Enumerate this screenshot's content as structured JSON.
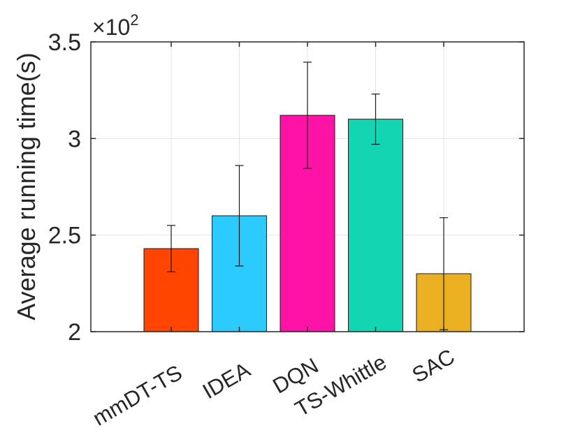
{
  "chart_data": {
    "type": "bar",
    "title": "",
    "xlabel": "",
    "ylabel": "Average running time(s)",
    "y_multiplier_prefix": "×10",
    "y_multiplier_exponent": "2",
    "ylim": [
      2,
      3.5
    ],
    "yticks": [
      "2",
      "2.5",
      "3",
      "3.5"
    ],
    "grid": true,
    "categories": [
      "mmDT-TS",
      "IDEA",
      "DQN",
      "TS-Whittle",
      "SAC"
    ],
    "values": [
      2.43,
      2.6,
      3.12,
      3.1,
      2.3
    ],
    "error_low": [
      2.31,
      2.34,
      2.845,
      2.97,
      2.01
    ],
    "error_high": [
      2.55,
      2.86,
      3.395,
      3.23,
      2.59
    ],
    "colors": [
      "#ff4500",
      "#2bcaff",
      "#ff13a6",
      "#12d5b1",
      "#ebb022"
    ]
  }
}
